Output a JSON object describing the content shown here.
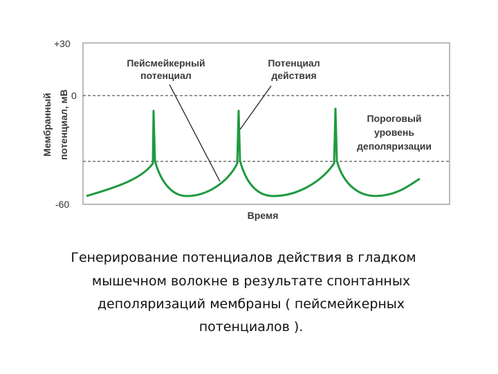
{
  "y_axis": {
    "label": [
      "Мембранный",
      "потенциал, мВ"
    ],
    "ticks": [
      "+30",
      "0",
      "-60"
    ]
  },
  "x_axis": {
    "label": "Время"
  },
  "annotations": [
    {
      "lines": [
        "Пейсмейкерный",
        "потенциал"
      ]
    },
    {
      "lines": [
        "Потенциал",
        "действия"
      ]
    },
    {
      "lines": [
        "Пороговый",
        "уровень",
        "деполяризации"
      ]
    }
  ],
  "caption": [
    "Генерирование потенциалов действия в гладком",
    "мышечном волокне в результате спонтанных",
    "деполяризаций мембраны ( пейсмейкерных",
    "потенциалов )."
  ]
}
